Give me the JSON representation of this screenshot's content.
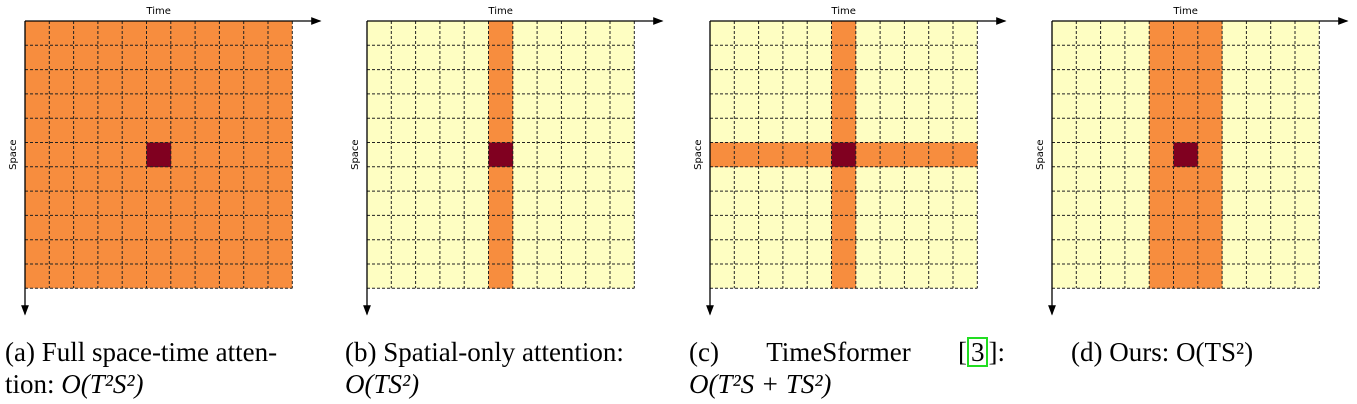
{
  "axes": {
    "time_label": "Time",
    "space_label": "Space"
  },
  "grid": {
    "rows": 11,
    "cols": 11,
    "query": {
      "row": 5,
      "col": 5
    }
  },
  "colors": {
    "unattended": "#fefec2",
    "attended": "#f78d3e",
    "query": "#800020",
    "grid_line": "#222222"
  },
  "panels": [
    {
      "id": "full",
      "pattern": "full",
      "caption": {
        "line1": "(a) Full space-time atten-",
        "line2_prefix": "tion: ",
        "line2_math": "O(T²S²)"
      }
    },
    {
      "id": "spatial",
      "pattern": "column",
      "caption": {
        "line1": "(b) Spatial-only attention:",
        "line2_prefix": "",
        "line2_math": "O(TS²)"
      }
    },
    {
      "id": "timesformer",
      "pattern": "cross",
      "caption": {
        "line1_a": "(c)",
        "line1_b": "TimeSformer",
        "line1_cite": "3",
        "line1_c": ":",
        "line2_prefix": "",
        "line2_math": "O(T²S + TS²)"
      }
    },
    {
      "id": "ours",
      "pattern": "band",
      "band_cols": [
        4,
        6
      ],
      "caption": {
        "line1": "(d) Ours: O(TS²)"
      }
    }
  ]
}
